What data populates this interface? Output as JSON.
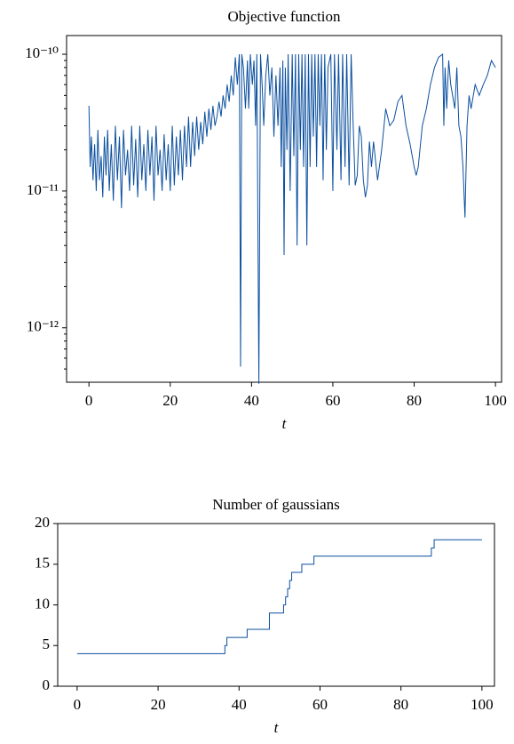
{
  "chart_data": [
    {
      "type": "line",
      "title": "Objective function",
      "xlabel": "t",
      "color": "#0b4f9f",
      "log_y": true,
      "xlim": [
        -5.5,
        101.5
      ],
      "xticks": [
        0,
        20,
        40,
        60,
        80,
        100
      ],
      "ylim": [
        4e-13,
        1.37e-10
      ],
      "yticks": [
        {
          "value": 1e-12,
          "label": "10⁻¹²"
        },
        {
          "value": 1e-11,
          "label": "10⁻¹¹"
        },
        {
          "value": 1e-10,
          "label": "10⁻¹⁰"
        }
      ],
      "yminorticks": [
        5e-13,
        6e-13,
        7e-13,
        8e-13,
        9e-13,
        2e-12,
        3e-12,
        4e-12,
        5e-12,
        6e-12,
        7e-12,
        8e-12,
        9e-12,
        2e-11,
        3e-11,
        4e-11,
        5e-11,
        6e-11,
        7e-11,
        8e-11,
        9e-11
      ],
      "x": [
        0,
        0.3,
        0.6,
        1,
        1.4,
        1.8,
        2.2,
        2.6,
        3,
        3.4,
        3.8,
        4.2,
        4.6,
        5,
        5.5,
        6,
        6.5,
        7,
        7.5,
        8,
        8.5,
        9,
        9.5,
        10,
        10.5,
        11,
        11.5,
        12,
        12.5,
        13,
        13.5,
        14,
        14.5,
        15,
        15.5,
        16,
        16.5,
        17,
        17.5,
        18,
        18.5,
        19,
        19.5,
        20,
        20.5,
        21,
        21.5,
        22,
        22.5,
        23,
        23.5,
        24,
        24.5,
        25,
        25.5,
        26,
        26.5,
        27,
        27.5,
        28,
        28.5,
        29,
        29.5,
        30,
        30.5,
        31,
        31.5,
        32,
        32.5,
        33,
        33.5,
        34,
        34.5,
        35,
        35.5,
        36,
        36.5,
        37,
        37.3,
        37.6,
        38,
        38.5,
        39,
        39.3,
        39.7,
        40.2,
        40.6,
        41,
        41.3,
        41.8,
        42.2,
        42.6,
        43,
        43.5,
        44,
        44.5,
        45,
        45.5,
        46,
        46.5,
        47,
        47.3,
        47.7,
        48,
        48.3,
        48.7,
        49,
        49.5,
        50,
        50.4,
        50.8,
        51.2,
        51.6,
        52,
        52.4,
        52.8,
        53.2,
        53.6,
        54,
        54.4,
        54.8,
        55.2,
        55.6,
        56,
        56.4,
        56.8,
        57.2,
        57.6,
        58,
        58.4,
        58.8,
        59.5,
        60,
        60.4,
        61,
        61.4,
        62,
        62.4,
        63,
        63.4,
        64,
        64.5,
        65,
        65.5,
        66,
        66.5,
        67,
        67.5,
        68,
        68.5,
        69,
        69.5,
        70,
        71,
        72,
        73,
        74,
        75,
        76,
        77,
        78,
        79,
        80,
        80.5,
        81,
        82,
        83,
        84,
        85,
        86,
        87,
        87.3,
        87.6,
        88,
        88.5,
        89,
        90,
        90.5,
        91,
        91.5,
        92,
        92.5,
        93,
        93.5,
        94,
        95,
        96,
        97,
        98,
        99,
        100
      ],
      "values": [
        4.2e-11,
        1.5e-11,
        2.5e-11,
        1.2e-11,
        2.2e-11,
        1e-11,
        2.8e-11,
        1.2e-11,
        1.8e-11,
        9e-12,
        2.5e-11,
        1.3e-11,
        2.8e-11,
        1e-11,
        2.2e-11,
        8.5e-12,
        3e-11,
        1.2e-11,
        2.5e-11,
        7.5e-12,
        2.8e-11,
        1.3e-11,
        2e-11,
        1e-11,
        3e-11,
        1.1e-11,
        2.4e-11,
        9e-12,
        3e-11,
        1.2e-11,
        2.2e-11,
        1e-11,
        2.8e-11,
        1.3e-11,
        2.5e-11,
        8.5e-12,
        3e-11,
        1.3e-11,
        2e-11,
        1e-11,
        2.6e-11,
        1.2e-11,
        2.2e-11,
        1e-11,
        3e-11,
        1.1e-11,
        2.5e-11,
        1.3e-11,
        2.8e-11,
        1.2e-11,
        3e-11,
        1.5e-11,
        3.5e-11,
        1.5e-11,
        3.2e-11,
        1.8e-11,
        3.5e-11,
        2e-11,
        3.2e-11,
        2.2e-11,
        3.8e-11,
        2.5e-11,
        4e-11,
        2.8e-11,
        4.2e-11,
        3e-11,
        3.5e-11,
        4.5e-11,
        3.5e-11,
        5e-11,
        4e-11,
        6e-11,
        4.5e-11,
        7e-11,
        5e-11,
        9.5e-11,
        6e-11,
        1e-10,
        5.2e-13,
        1e-10,
        8e-11,
        4e-11,
        9e-11,
        4e-11,
        1e-10,
        6e-11,
        9e-11,
        3e-11,
        1e-10,
        3.9e-13,
        1e-10,
        6e-11,
        3e-11,
        7e-11,
        1e-10,
        5e-11,
        8e-11,
        2.5e-11,
        7e-11,
        3e-11,
        8e-11,
        1.5e-11,
        9e-11,
        3.4e-12,
        8e-11,
        2e-11,
        1e-10,
        1e-11,
        1e-10,
        1.8e-11,
        1e-10,
        4e-12,
        1e-10,
        2e-11,
        1e-10,
        1.5e-11,
        1e-10,
        4e-12,
        1e-10,
        1.5e-11,
        1e-10,
        2.5e-11,
        1e-10,
        1.5e-11,
        1e-10,
        3e-11,
        1e-10,
        1.2e-11,
        1e-10,
        2e-11,
        8e-11,
        1e-10,
        1e-11,
        1e-10,
        2e-11,
        1e-10,
        1.2e-11,
        1e-10,
        1.5e-11,
        1e-10,
        1.1e-11,
        1e-10,
        3e-11,
        1.1e-11,
        1.3e-11,
        3e-11,
        2.5e-11,
        1.2e-11,
        9e-12,
        1.1e-11,
        2.3e-11,
        1.5e-11,
        2.3e-11,
        1.2e-11,
        2e-11,
        4e-11,
        3e-11,
        3.3e-11,
        4.5e-11,
        5e-11,
        3e-11,
        2.2e-11,
        1.5e-11,
        1.3e-11,
        1.5e-11,
        3e-11,
        4e-11,
        6e-11,
        8e-11,
        9.5e-11,
        1e-10,
        3e-11,
        8e-11,
        4e-11,
        9e-11,
        6e-11,
        4e-11,
        8e-11,
        3e-11,
        2.5e-11,
        1.5e-11,
        6.4e-12,
        3e-11,
        5e-11,
        4e-11,
        6e-11,
        5e-11,
        6e-11,
        7e-11,
        9e-11,
        8e-11
      ]
    },
    {
      "type": "line",
      "title": "Number of gaussians",
      "xlabel": "t",
      "color": "#0b4f9f",
      "drawstyle": "steps-post",
      "xlim": [
        -4.8,
        103.1
      ],
      "xticks": [
        0,
        20,
        40,
        60,
        80,
        100
      ],
      "ylim": [
        0,
        20
      ],
      "yticks": [
        0,
        5,
        10,
        15,
        20
      ],
      "x": [
        0,
        36.5,
        37,
        42,
        47.5,
        51,
        51.5,
        52,
        52.5,
        53,
        55.5,
        58.5,
        87.5,
        88.2,
        100
      ],
      "values": [
        4,
        5,
        6,
        7,
        9,
        10,
        11,
        12,
        13,
        14,
        15,
        16,
        17,
        18,
        18
      ]
    }
  ]
}
